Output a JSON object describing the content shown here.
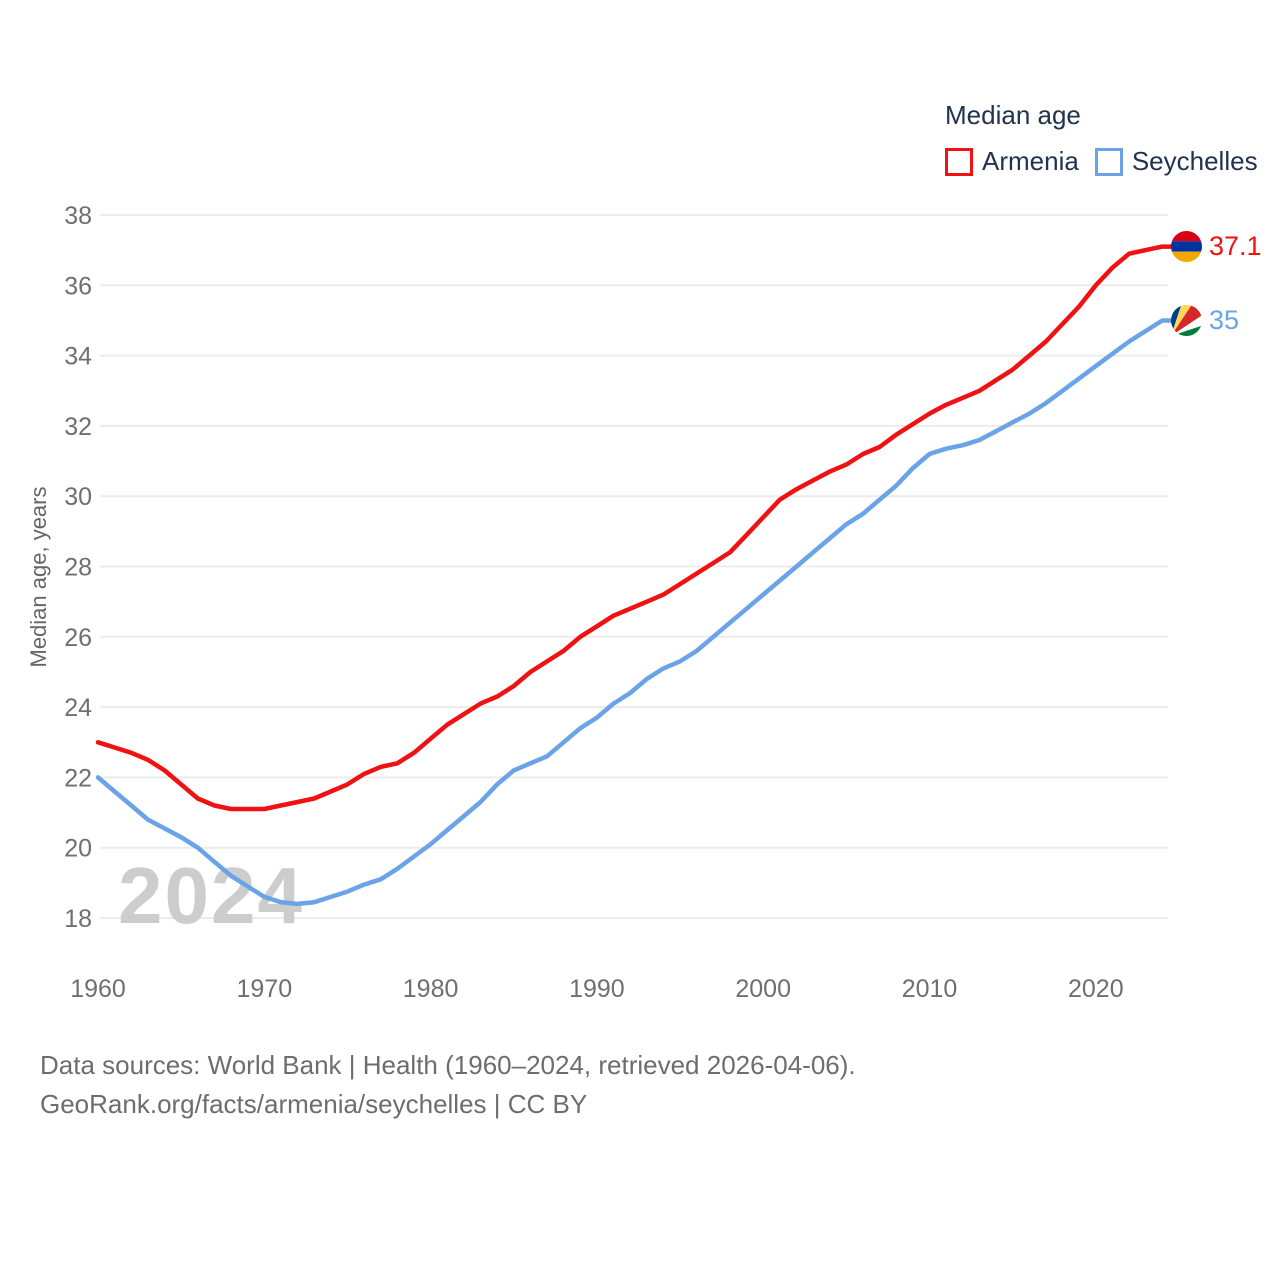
{
  "legend": {
    "title": "Median age",
    "items": [
      {
        "label": "Armenia",
        "color": "#f01212"
      },
      {
        "label": "Seychelles",
        "color": "#6aa3e8"
      }
    ]
  },
  "watermark": "2024",
  "end_labels": [
    {
      "series": "Armenia",
      "value": "37.1",
      "color": "#f01212",
      "flag": "armenia-flag"
    },
    {
      "series": "Seychelles",
      "value": "35",
      "color": "#6aa3e8",
      "flag": "seychelles-flag"
    }
  ],
  "footer": {
    "line1": "Data sources: World Bank | Health (1960–2024, retrieved 2026-04-06).",
    "line2": "GeoRank.org/facts/armenia/seychelles | CC BY"
  },
  "flag_colors": {
    "armenia": [
      "#d90012",
      "#0033a0",
      "#f2a800"
    ],
    "seychelles": [
      "#003f87",
      "#fcd856",
      "#d62828",
      "#ffffff",
      "#007a3d"
    ]
  },
  "chart_data": {
    "type": "line",
    "title": "Median age",
    "xlabel": "",
    "ylabel": "Median age, years",
    "xlim": [
      1960,
      2024
    ],
    "ylim": [
      18,
      38
    ],
    "xticks": [
      1960,
      1970,
      1980,
      1990,
      2000,
      2010,
      2020
    ],
    "yticks": [
      18,
      20,
      22,
      24,
      26,
      28,
      30,
      32,
      34,
      36,
      38
    ],
    "grid": "horizontal",
    "gridline_color": "#ececec",
    "tick_color": "#6f6f6f",
    "legend_position": "top-right",
    "x_start": 1960,
    "x_end": 2024,
    "series": [
      {
        "name": "Armenia",
        "color": "#f01212",
        "end_value": 37.1,
        "values": [
          23.0,
          22.85,
          22.7,
          22.5,
          22.2,
          21.8,
          21.4,
          21.2,
          21.1,
          21.1,
          21.1,
          21.2,
          21.3,
          21.4,
          21.6,
          21.8,
          22.1,
          22.3,
          22.4,
          22.7,
          23.1,
          23.5,
          23.8,
          24.1,
          24.3,
          24.6,
          25.0,
          25.3,
          25.6,
          26.0,
          26.3,
          26.6,
          26.8,
          27.0,
          27.2,
          27.5,
          27.8,
          28.1,
          28.4,
          28.9,
          29.4,
          29.9,
          30.2,
          30.45,
          30.7,
          30.9,
          31.2,
          31.4,
          31.75,
          32.05,
          32.35,
          32.6,
          32.8,
          33.0,
          33.3,
          33.6,
          34.0,
          34.4,
          34.9,
          35.4,
          36.0,
          36.5,
          36.9,
          37.0,
          37.1
        ]
      },
      {
        "name": "Seychelles",
        "color": "#6aa3e8",
        "end_value": 35,
        "values": [
          22.0,
          21.6,
          21.2,
          20.8,
          20.55,
          20.3,
          20.0,
          19.6,
          19.2,
          18.9,
          18.6,
          18.45,
          18.4,
          18.45,
          18.6,
          18.75,
          18.95,
          19.1,
          19.4,
          19.75,
          20.1,
          20.5,
          20.9,
          21.3,
          21.8,
          22.2,
          22.4,
          22.6,
          23.0,
          23.4,
          23.7,
          24.1,
          24.4,
          24.8,
          25.1,
          25.3,
          25.6,
          26.0,
          26.4,
          26.8,
          27.2,
          27.6,
          28.0,
          28.4,
          28.8,
          29.2,
          29.5,
          29.9,
          30.3,
          30.8,
          31.2,
          31.35,
          31.45,
          31.6,
          31.85,
          32.1,
          32.35,
          32.65,
          33.0,
          33.35,
          33.7,
          34.05,
          34.4,
          34.7,
          35.0
        ]
      }
    ]
  }
}
